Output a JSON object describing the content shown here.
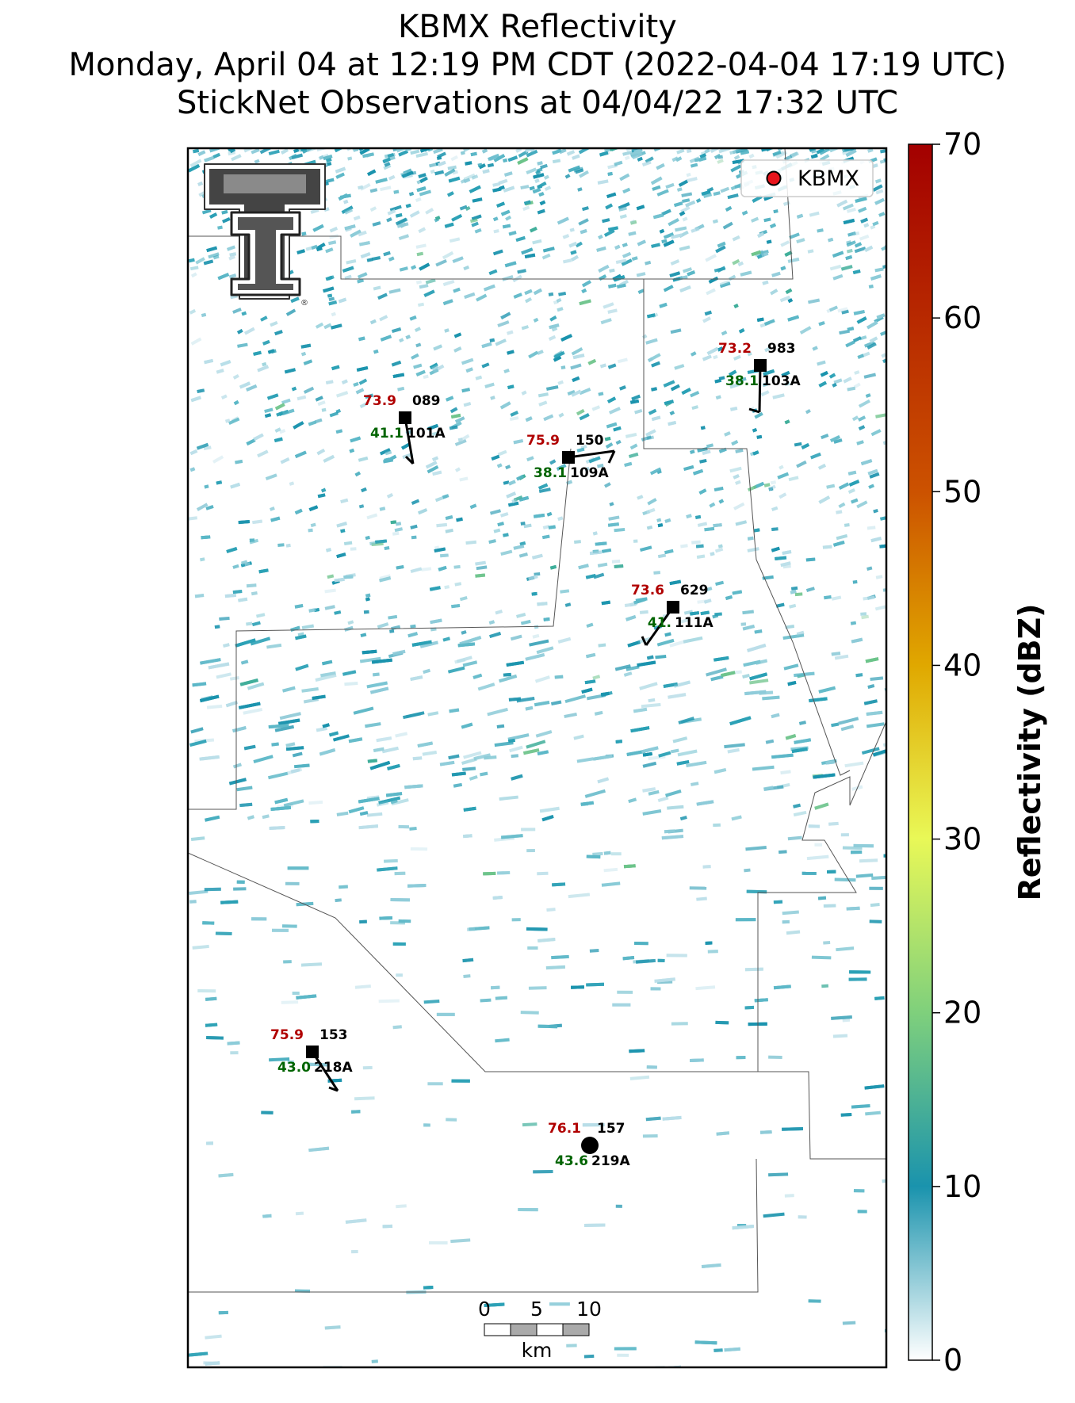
{
  "title": {
    "line1": "KBMX Reflectivity",
    "line2": "Monday, April 04 at 12:19 PM CDT (2022-04-04 17:19 UTC)",
    "line3": "StickNet Observations at 04/04/22 17:32 UTC"
  },
  "legend": {
    "label": "KBMX",
    "marker_color": "#e8141c"
  },
  "colorbar": {
    "label": "Reflectivity (dBZ)",
    "ticks": [
      "0",
      "10",
      "20",
      "30",
      "40",
      "50",
      "60",
      "70"
    ],
    "min": 0,
    "max": 70,
    "stops": [
      "#ffffff",
      "#1a93ad",
      "#7fd07c",
      "#e9f857",
      "#e0a800",
      "#cc5200",
      "#a30000"
    ]
  },
  "scalebar": {
    "ticks": [
      "0",
      "5",
      "10"
    ],
    "unit": "km"
  },
  "stations": [
    {
      "id": "101A",
      "temp": "73.9",
      "dew": "41.1",
      "pressure": "089",
      "symbol": "square"
    },
    {
      "id": "109A",
      "temp": "75.9",
      "dew": "38.1",
      "pressure": "150",
      "symbol": "square"
    },
    {
      "id": "103A",
      "temp": "73.2",
      "dew": "38.1",
      "pressure": "983",
      "symbol": "square"
    },
    {
      "id": "111A",
      "temp": "73.6",
      "dew": "41.",
      "pressure": "629",
      "symbol": "square"
    },
    {
      "id": "218A",
      "temp": "75.9",
      "dew": "43.0",
      "pressure": "153",
      "symbol": "square"
    },
    {
      "id": "219A",
      "temp": "76.1",
      "dew": "43.6",
      "pressure": "157",
      "symbol": "circle"
    }
  ],
  "colors": {
    "temp": "#b00000",
    "dew": "#006400",
    "echo": "#1a93ad"
  }
}
